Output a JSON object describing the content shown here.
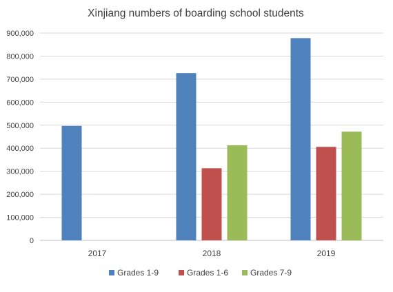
{
  "chart_data": {
    "type": "bar",
    "title": "Xinjiang numbers of boarding school students",
    "xlabel": "",
    "ylabel": "",
    "categories": [
      "2017",
      "2018",
      "2019"
    ],
    "series": [
      {
        "name": "Grades 1-9",
        "color": "#4f81bd",
        "values": [
          497000,
          726000,
          878000
        ]
      },
      {
        "name": "Grades 1-6",
        "color": "#c0504d",
        "values": [
          null,
          313000,
          406000
        ]
      },
      {
        "name": "Grades 7-9",
        "color": "#9bbb59",
        "values": [
          null,
          413000,
          472000
        ]
      }
    ],
    "ylim": [
      0,
      900000
    ],
    "yticks": [
      0,
      100000,
      200000,
      300000,
      400000,
      500000,
      600000,
      700000,
      800000,
      900000
    ],
    "ytick_labels": [
      "0",
      "100,000",
      "200,000",
      "300,000",
      "400,000",
      "500,000",
      "600,000",
      "700,000",
      "800,000",
      "900,000"
    ],
    "grid": true,
    "legend_position": "bottom"
  }
}
